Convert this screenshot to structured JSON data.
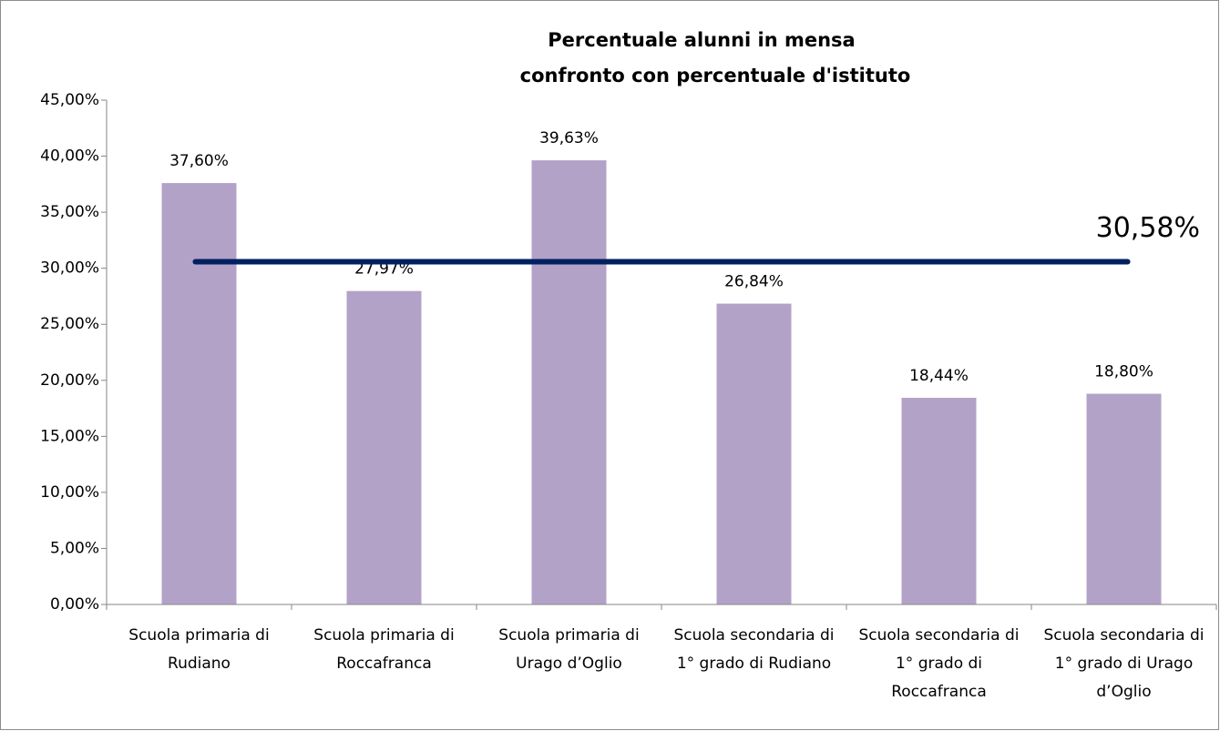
{
  "chart_data": {
    "type": "bar",
    "title": "Percentuale alunni in mensa",
    "subtitle": "confronto con percentuale d'istituto",
    "categories": [
      "Scuola primaria di Rudiano",
      "Scuola primaria di Roccafranca",
      "Scuola primaria di Urago d’Oglio",
      "Scuola secondaria di 1° grado di Rudiano",
      "Scuola secondaria di 1° grado di Roccafranca",
      "Scuola secondaria di 1° grado di Urago d’Oglio"
    ],
    "values": [
      37.6,
      27.97,
      39.63,
      26.84,
      18.44,
      18.8
    ],
    "value_labels": [
      "37,60%",
      "27,97%",
      "39,63%",
      "26,84%",
      "18,44%",
      "18,80%"
    ],
    "color": "#b3a2c7",
    "reference_line": {
      "value": 30.58,
      "label": "30,58%",
      "color": "#002060"
    },
    "ylim": [
      0,
      45
    ],
    "yticks": [
      {
        "value": 0,
        "label": "0,00%"
      },
      {
        "value": 5,
        "label": "5,00%"
      },
      {
        "value": 10,
        "label": "10,00%"
      },
      {
        "value": 15,
        "label": "15,00%"
      },
      {
        "value": 20,
        "label": "20,00%"
      },
      {
        "value": 25,
        "label": "25,00%"
      },
      {
        "value": 30,
        "label": "30,00%"
      },
      {
        "value": 35,
        "label": "35,00%"
      },
      {
        "value": 40,
        "label": "40,00%"
      },
      {
        "value": 45,
        "label": "45,00%"
      }
    ],
    "grid": false
  }
}
